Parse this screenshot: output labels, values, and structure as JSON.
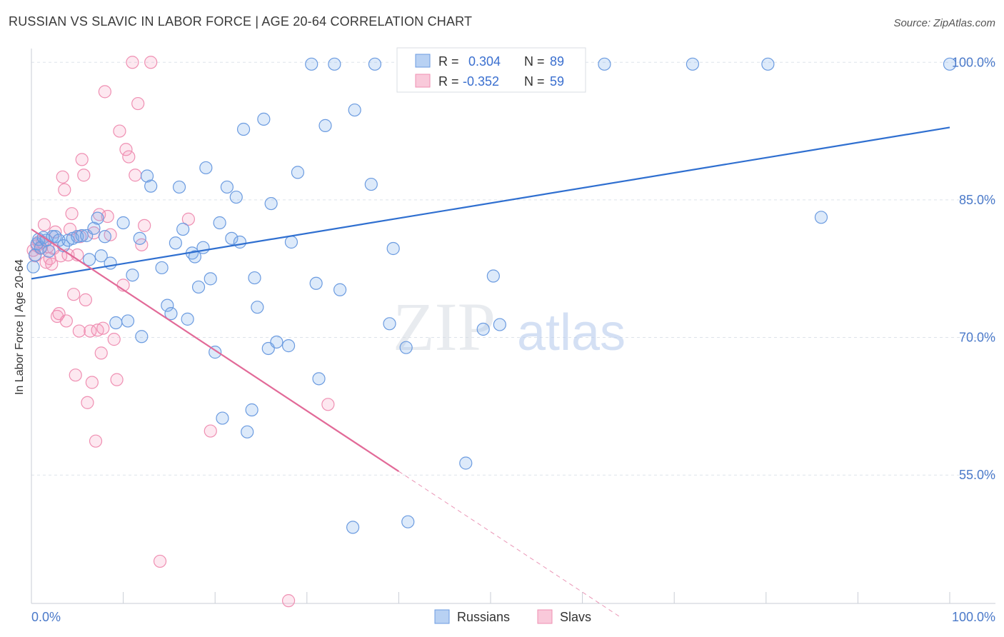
{
  "header": {
    "title": "RUSSIAN VS SLAVIC IN LABOR FORCE | AGE 20-64 CORRELATION CHART",
    "source": "Source: ZipAtlas.com"
  },
  "watermark": {
    "zip": "ZIP",
    "atlas": "atlas"
  },
  "colors": {
    "russians_fill": "rgba(120,170,235,0.25)",
    "russians_stroke": "#6b9be0",
    "russians_line": "#2f6fd0",
    "slavs_fill": "rgba(245,150,185,0.22)",
    "slavs_stroke": "#ef8fb2",
    "slavs_line": "#e26a98",
    "tick_label": "#4a79c9",
    "grid": "#dde3ea"
  },
  "legend": {
    "r_label": "R =",
    "n_label": "N =",
    "russians": {
      "r": "0.304",
      "n": "89"
    },
    "slavs": {
      "r": "-0.352",
      "n": "59"
    }
  },
  "chart_data": {
    "type": "scatter",
    "title": "RUSSIAN VS SLAVIC IN LABOR FORCE | AGE 20-64 CORRELATION CHART",
    "xlabel": "",
    "ylabel": "In Labor Force | Age 20-64",
    "xlim": [
      0,
      100
    ],
    "ylim": [
      41.0,
      101.5
    ],
    "x_tick_labels": [
      "0.0%",
      "100.0%"
    ],
    "y_ticks": [
      55.0,
      70.0,
      85.0,
      100.0
    ],
    "y_tick_labels": [
      "55.0%",
      "70.0%",
      "85.0%",
      "100.0%"
    ],
    "grid": "horizontal dashed",
    "legend_position": "top-center",
    "bottom_legend": [
      "Russians",
      "Slavs"
    ],
    "series": [
      {
        "name": "Russians",
        "trend": {
          "x": [
            0,
            100
          ],
          "y": [
            76.4,
            92.9
          ],
          "style": "solid"
        },
        "points": [
          [
            0.2,
            77.7
          ],
          [
            0.4,
            79.0
          ],
          [
            0.6,
            80.2
          ],
          [
            0.8,
            80.7
          ],
          [
            1.0,
            79.8
          ],
          [
            1.3,
            80.9
          ],
          [
            1.6,
            80.6
          ],
          [
            1.9,
            79.4
          ],
          [
            2.3,
            81.0
          ],
          [
            2.6,
            81.0
          ],
          [
            3.0,
            80.6
          ],
          [
            3.5,
            80.0
          ],
          [
            4.0,
            80.6
          ],
          [
            4.5,
            80.8
          ],
          [
            5.0,
            81.0
          ],
          [
            5.5,
            81.1
          ],
          [
            6.0,
            81.1
          ],
          [
            6.3,
            78.5
          ],
          [
            6.8,
            81.9
          ],
          [
            7.2,
            83.0
          ],
          [
            7.6,
            78.9
          ],
          [
            8.0,
            81.0
          ],
          [
            8.6,
            78.1
          ],
          [
            9.2,
            71.6
          ],
          [
            10.0,
            82.5
          ],
          [
            10.5,
            71.8
          ],
          [
            11.0,
            76.8
          ],
          [
            11.8,
            80.8
          ],
          [
            12.0,
            70.1
          ],
          [
            12.6,
            87.6
          ],
          [
            13.0,
            86.5
          ],
          [
            14.2,
            77.6
          ],
          [
            14.8,
            73.5
          ],
          [
            15.2,
            72.6
          ],
          [
            15.7,
            80.3
          ],
          [
            16.1,
            86.4
          ],
          [
            16.5,
            81.8
          ],
          [
            17.0,
            72.0
          ],
          [
            17.5,
            79.2
          ],
          [
            17.8,
            78.8
          ],
          [
            18.2,
            75.5
          ],
          [
            18.7,
            79.8
          ],
          [
            19.0,
            88.5
          ],
          [
            19.5,
            76.4
          ],
          [
            20.0,
            68.4
          ],
          [
            20.5,
            82.5
          ],
          [
            20.8,
            61.2
          ],
          [
            21.3,
            86.4
          ],
          [
            21.8,
            80.8
          ],
          [
            22.3,
            85.3
          ],
          [
            22.7,
            80.4
          ],
          [
            23.1,
            92.7
          ],
          [
            23.5,
            59.7
          ],
          [
            24.0,
            62.1
          ],
          [
            24.3,
            76.5
          ],
          [
            24.6,
            73.3
          ],
          [
            25.3,
            93.8
          ],
          [
            25.8,
            68.8
          ],
          [
            26.1,
            84.6
          ],
          [
            26.7,
            69.5
          ],
          [
            28.0,
            69.1
          ],
          [
            28.3,
            80.4
          ],
          [
            29.0,
            88.0
          ],
          [
            30.5,
            99.8
          ],
          [
            31.0,
            75.9
          ],
          [
            31.3,
            65.5
          ],
          [
            32.0,
            93.1
          ],
          [
            33.0,
            99.8
          ],
          [
            33.6,
            75.2
          ],
          [
            35.2,
            94.8
          ],
          [
            37.0,
            86.7
          ],
          [
            37.4,
            99.8
          ],
          [
            39.0,
            71.5
          ],
          [
            39.4,
            79.7
          ],
          [
            40.8,
            68.9
          ],
          [
            41.0,
            49.9
          ],
          [
            41.5,
            99.8
          ],
          [
            47.3,
            56.3
          ],
          [
            49.2,
            70.9
          ],
          [
            50.3,
            76.7
          ],
          [
            51.0,
            71.4
          ],
          [
            55.0,
            99.8
          ],
          [
            59.2,
            99.8
          ],
          [
            62.4,
            99.8
          ],
          [
            72.0,
            99.8
          ],
          [
            80.2,
            99.8
          ],
          [
            86.0,
            83.1
          ],
          [
            100,
            99.8
          ],
          [
            35.0,
            49.3
          ]
        ]
      },
      {
        "name": "Slavs",
        "trend": {
          "x": [
            0,
            40
          ],
          "y": [
            81.8,
            55.4
          ],
          "style": "solid",
          "dashed_extension": {
            "x": [
              40,
              64
            ],
            "y": [
              55.4,
              39.6
            ]
          }
        },
        "points": [
          [
            0.2,
            79.5
          ],
          [
            0.4,
            78.9
          ],
          [
            0.6,
            80.0
          ],
          [
            0.8,
            80.4
          ],
          [
            1.0,
            79.7
          ],
          [
            1.2,
            80.4
          ],
          [
            1.4,
            82.3
          ],
          [
            1.6,
            78.2
          ],
          [
            1.8,
            79.9
          ],
          [
            2.0,
            78.6
          ],
          [
            2.2,
            78.0
          ],
          [
            2.4,
            79.7
          ],
          [
            2.6,
            81.5
          ],
          [
            2.8,
            72.3
          ],
          [
            3.0,
            72.6
          ],
          [
            3.2,
            78.9
          ],
          [
            3.4,
            87.5
          ],
          [
            3.6,
            86.1
          ],
          [
            3.8,
            71.8
          ],
          [
            4.0,
            79.0
          ],
          [
            4.2,
            81.8
          ],
          [
            4.4,
            83.5
          ],
          [
            4.6,
            74.7
          ],
          [
            4.8,
            65.9
          ],
          [
            5.0,
            79.0
          ],
          [
            5.2,
            70.7
          ],
          [
            5.5,
            89.4
          ],
          [
            5.7,
            87.7
          ],
          [
            5.9,
            74.1
          ],
          [
            6.1,
            62.9
          ],
          [
            6.4,
            70.7
          ],
          [
            6.6,
            65.1
          ],
          [
            6.8,
            81.4
          ],
          [
            7.0,
            58.7
          ],
          [
            7.2,
            70.8
          ],
          [
            7.4,
            83.4
          ],
          [
            7.6,
            68.3
          ],
          [
            7.8,
            71.0
          ],
          [
            8.0,
            96.8
          ],
          [
            8.3,
            83.2
          ],
          [
            8.6,
            81.2
          ],
          [
            9.0,
            69.8
          ],
          [
            9.3,
            65.4
          ],
          [
            9.6,
            92.5
          ],
          [
            10.0,
            75.7
          ],
          [
            10.3,
            90.5
          ],
          [
            10.6,
            89.7
          ],
          [
            11.0,
            100.0
          ],
          [
            11.3,
            87.7
          ],
          [
            11.6,
            95.5
          ],
          [
            12.0,
            80.1
          ],
          [
            12.3,
            82.2
          ],
          [
            13.0,
            100.0
          ],
          [
            14.0,
            45.6
          ],
          [
            17.1,
            82.9
          ],
          [
            19.5,
            59.8
          ],
          [
            28.0,
            41.3
          ],
          [
            32.3,
            62.7
          ],
          [
            5.3,
            81.0
          ]
        ]
      }
    ]
  },
  "y_axis_title": "In Labor Force | Age 20-64",
  "x_axis": {
    "left_label": "0.0%",
    "right_label": "100.0%"
  },
  "y_axis_labels": [
    "100.0%",
    "85.0%",
    "70.0%",
    "55.0%"
  ]
}
